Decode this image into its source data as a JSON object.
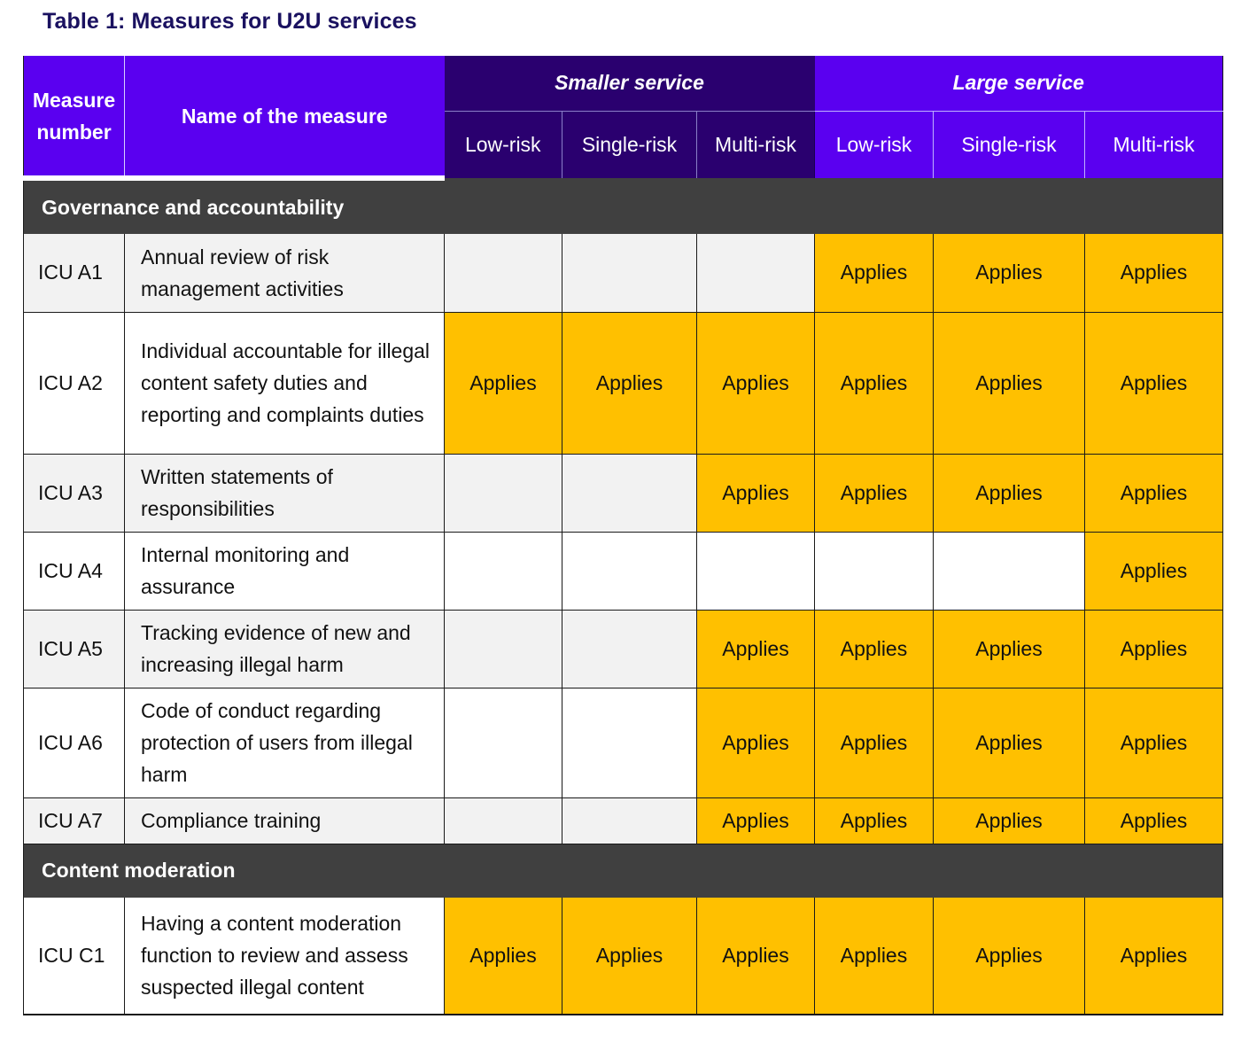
{
  "caption": "Table 1: Measures for U2U services",
  "header": {
    "measure_number": "Measure number",
    "measure_name": "Name of the measure",
    "smaller_service": "Smaller service",
    "large_service": "Large service",
    "sub": [
      "Low-risk",
      "Single-risk",
      "Multi-risk",
      "Low-risk",
      "Single-risk",
      "Multi-risk"
    ]
  },
  "applies_label": "Applies",
  "sections": [
    {
      "title": "Governance and accountability",
      "rows": [
        {
          "num": "ICU A1",
          "name": "Annual review of risk management activities",
          "cells": [
            false,
            false,
            false,
            true,
            true,
            true
          ]
        },
        {
          "num": "ICU A2",
          "name": "Individual accountable for illegal content safety duties and reporting and complaints duties",
          "cells": [
            true,
            true,
            true,
            true,
            true,
            true
          ]
        },
        {
          "num": "ICU A3",
          "name": "Written statements of responsibilities",
          "cells": [
            false,
            false,
            true,
            true,
            true,
            true
          ]
        },
        {
          "num": "ICU A4",
          "name": "Internal monitoring and assurance",
          "cells": [
            false,
            false,
            false,
            false,
            false,
            true
          ]
        },
        {
          "num": "ICU A5",
          "name": "Tracking evidence of new and increasing illegal harm",
          "cells": [
            false,
            false,
            true,
            true,
            true,
            true
          ]
        },
        {
          "num": "ICU A6",
          "name": "Code of conduct regarding protection of users from illegal harm",
          "cells": [
            false,
            false,
            true,
            true,
            true,
            true
          ]
        },
        {
          "num": "ICU A7",
          "name": "Compliance training",
          "cells": [
            false,
            false,
            true,
            true,
            true,
            true
          ]
        }
      ]
    },
    {
      "title": "Content moderation",
      "rows": [
        {
          "num": "ICU C1",
          "name": "Having a content moderation function to review and assess suspected illegal content",
          "cells": [
            true,
            true,
            true,
            true,
            true,
            true
          ]
        }
      ]
    }
  ],
  "colors": {
    "header_purple": "#5a00f0",
    "header_dark": "#2a006f",
    "section_bar": "#404040",
    "applies": "#ffc000",
    "row_gray": "#f2f2f2"
  }
}
